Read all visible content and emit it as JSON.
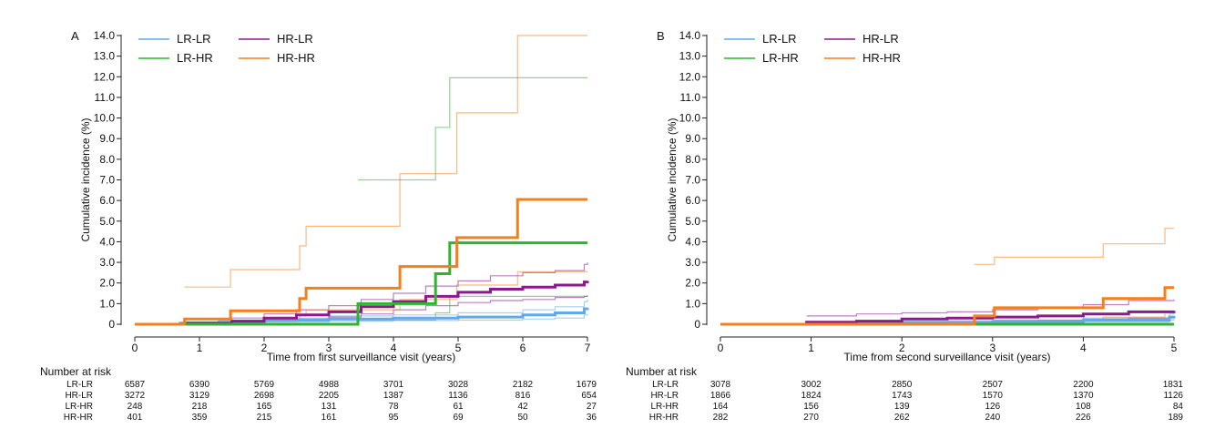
{
  "colors": {
    "lr_lr": "#64A8E6",
    "hr_lr": "#8B1A8B",
    "lr_hr": "#2DB52D",
    "hr_hr": "#F47F1B",
    "axis": "#222222",
    "text": "#111111"
  },
  "chart_data": [
    {
      "type": "line",
      "panel_label": "A",
      "xlabel": "Time from first surveillance visit (years)",
      "ylabel": "Cumulative incidence (%)",
      "xlim": [
        0,
        7
      ],
      "ylim": [
        0,
        14
      ],
      "xticks": [
        "0",
        "1",
        "2",
        "3",
        "4",
        "5",
        "6",
        "7"
      ],
      "yticks": [
        "0",
        "1.0",
        "2.0",
        "3.0",
        "4.0",
        "5.0",
        "6.0",
        "7.0",
        "8.0",
        "9.0",
        "10.0",
        "11.0",
        "12.0",
        "13.0",
        "14.0"
      ],
      "grid": false,
      "legend_position": "top-left",
      "legend": [
        "LR-LR",
        "HR-LR",
        "LR-HR",
        "HR-HR"
      ],
      "series": [
        {
          "name": "LR-LR",
          "color": "#64A8E6",
          "x": [
            0,
            0.7,
            1.3,
            2,
            3,
            4,
            5,
            6,
            6.5,
            6.95,
            7
          ],
          "est": [
            0,
            0.05,
            0.1,
            0.2,
            0.25,
            0.3,
            0.35,
            0.45,
            0.55,
            0.75,
            0.8
          ],
          "lo": [
            0,
            0.02,
            0.05,
            0.1,
            0.15,
            0.18,
            0.2,
            0.25,
            0.3,
            0.45,
            0.5
          ],
          "hi": [
            0,
            0.1,
            0.2,
            0.3,
            0.4,
            0.45,
            0.55,
            0.7,
            0.85,
            1.1,
            1.2
          ]
        },
        {
          "name": "HR-LR",
          "color": "#8B1A8B",
          "x": [
            0,
            0.8,
            1.5,
            2,
            2.5,
            3,
            3.5,
            4,
            4.5,
            5,
            5.5,
            6,
            6.5,
            6.95,
            7
          ],
          "est": [
            0,
            0.05,
            0.15,
            0.3,
            0.45,
            0.6,
            0.85,
            1.1,
            1.35,
            1.55,
            1.7,
            1.8,
            1.9,
            2.05,
            2.1
          ],
          "lo": [
            0,
            0.02,
            0.07,
            0.15,
            0.25,
            0.35,
            0.5,
            0.7,
            0.9,
            1.05,
            1.15,
            1.2,
            1.3,
            1.35,
            1.4
          ],
          "hi": [
            0,
            0.1,
            0.3,
            0.5,
            0.7,
            0.9,
            1.2,
            1.5,
            1.85,
            2.1,
            2.35,
            2.5,
            2.6,
            2.9,
            3.0
          ]
        },
        {
          "name": "LR-HR",
          "color": "#2DB52D",
          "x": [
            0,
            3.45,
            4.1,
            4.65,
            4.87,
            7
          ],
          "est": [
            0,
            1.0,
            1.0,
            2.45,
            3.95,
            3.95
          ],
          "lo": [
            0,
            0.2,
            0.2,
            0.55,
            1.35,
            1.35
          ],
          "hi": [
            0,
            7.0,
            7.0,
            9.55,
            11.95,
            11.95
          ]
        },
        {
          "name": "HR-HR",
          "color": "#F47F1B",
          "x": [
            0,
            0.77,
            1.48,
            2.55,
            2.65,
            4.1,
            4.98,
            5.92,
            7
          ],
          "est": [
            0,
            0.25,
            0.65,
            1.25,
            1.75,
            2.8,
            4.2,
            6.05,
            6.05
          ],
          "lo": [
            0,
            0.05,
            0.15,
            0.4,
            0.7,
            1.2,
            1.9,
            2.55,
            2.55
          ],
          "hi": [
            0,
            1.8,
            2.65,
            3.8,
            4.75,
            7.3,
            10.25,
            14.0,
            14.0
          ]
        }
      ],
      "risk_table": {
        "title": "Number at risk",
        "rows": [
          {
            "label": "LR-LR",
            "values": [
              "6587",
              "6390",
              "5769",
              "4988",
              "3701",
              "3028",
              "2182",
              "1679"
            ]
          },
          {
            "label": "HR-LR",
            "values": [
              "3272",
              "3129",
              "2698",
              "2205",
              "1387",
              "1136",
              "816",
              "654"
            ]
          },
          {
            "label": "LR-HR",
            "values": [
              "248",
              "218",
              "165",
              "131",
              "78",
              "61",
              "42",
              "27"
            ]
          },
          {
            "label": "HR-HR",
            "values": [
              "401",
              "359",
              "215",
              "161",
              "95",
              "69",
              "50",
              "36"
            ]
          }
        ]
      }
    },
    {
      "type": "line",
      "panel_label": "B",
      "xlabel": "Time from second surveillance visit (years)",
      "ylabel": "Cumulative incidence (%)",
      "xlim": [
        0,
        5
      ],
      "ylim": [
        0,
        14
      ],
      "xticks": [
        "0",
        "1",
        "2",
        "3",
        "4",
        "5"
      ],
      "yticks": [
        "0",
        "1.0",
        "2.0",
        "3.0",
        "4.0",
        "5.0",
        "6.0",
        "7.0",
        "8.0",
        "9.0",
        "10.0",
        "11.0",
        "12.0",
        "13.0",
        "14.0"
      ],
      "grid": false,
      "legend_position": "top-left",
      "legend": [
        "LR-LR",
        "HR-LR",
        "LR-HR",
        "HR-HR"
      ],
      "series": [
        {
          "name": "LR-LR",
          "color": "#64A8E6",
          "x": [
            0,
            1,
            2,
            3,
            4,
            4.95,
            5
          ],
          "est": [
            0,
            0.03,
            0.08,
            0.12,
            0.2,
            0.35,
            0.4
          ],
          "lo": [
            0,
            0.01,
            0.03,
            0.05,
            0.1,
            0.2,
            0.25
          ],
          "hi": [
            0,
            0.08,
            0.15,
            0.2,
            0.3,
            0.5,
            0.55
          ]
        },
        {
          "name": "HR-LR",
          "color": "#8B1A8B",
          "x": [
            0,
            0.95,
            1.5,
            2,
            2.5,
            3,
            3.5,
            4,
            4.5,
            5
          ],
          "est": [
            0,
            0.1,
            0.15,
            0.25,
            0.3,
            0.35,
            0.4,
            0.5,
            0.6,
            0.65
          ],
          "lo": [
            0,
            0.02,
            0.05,
            0.1,
            0.12,
            0.15,
            0.18,
            0.25,
            0.3,
            0.3
          ],
          "hi": [
            0,
            0.4,
            0.5,
            0.55,
            0.6,
            0.7,
            0.8,
            0.95,
            1.15,
            1.2
          ]
        },
        {
          "name": "LR-HR",
          "color": "#2DB52D",
          "x": [
            0,
            5
          ],
          "est": [
            0,
            0
          ],
          "lo": [
            0,
            0
          ],
          "hi": [
            0,
            0
          ]
        },
        {
          "name": "HR-HR",
          "color": "#F47F1B",
          "x": [
            0,
            2.8,
            3.02,
            4.22,
            4.9,
            5
          ],
          "est": [
            0,
            0.4,
            0.8,
            1.25,
            1.78,
            1.78
          ],
          "lo": [
            0,
            0.05,
            0.2,
            0.35,
            0.6,
            0.6
          ],
          "hi": [
            0,
            2.9,
            3.25,
            3.9,
            4.65,
            4.65
          ]
        }
      ],
      "risk_table": {
        "title": "Number at risk",
        "rows": [
          {
            "label": "LR-LR",
            "values": [
              "3078",
              "3002",
              "2850",
              "2507",
              "2200",
              "1831"
            ]
          },
          {
            "label": "HR-LR",
            "values": [
              "1866",
              "1824",
              "1743",
              "1570",
              "1370",
              "1126"
            ]
          },
          {
            "label": "LR-HR",
            "values": [
              "164",
              "156",
              "139",
              "126",
              "108",
              "84"
            ]
          },
          {
            "label": "HR-HR",
            "values": [
              "282",
              "270",
              "262",
              "240",
              "226",
              "189"
            ]
          }
        ]
      }
    }
  ]
}
